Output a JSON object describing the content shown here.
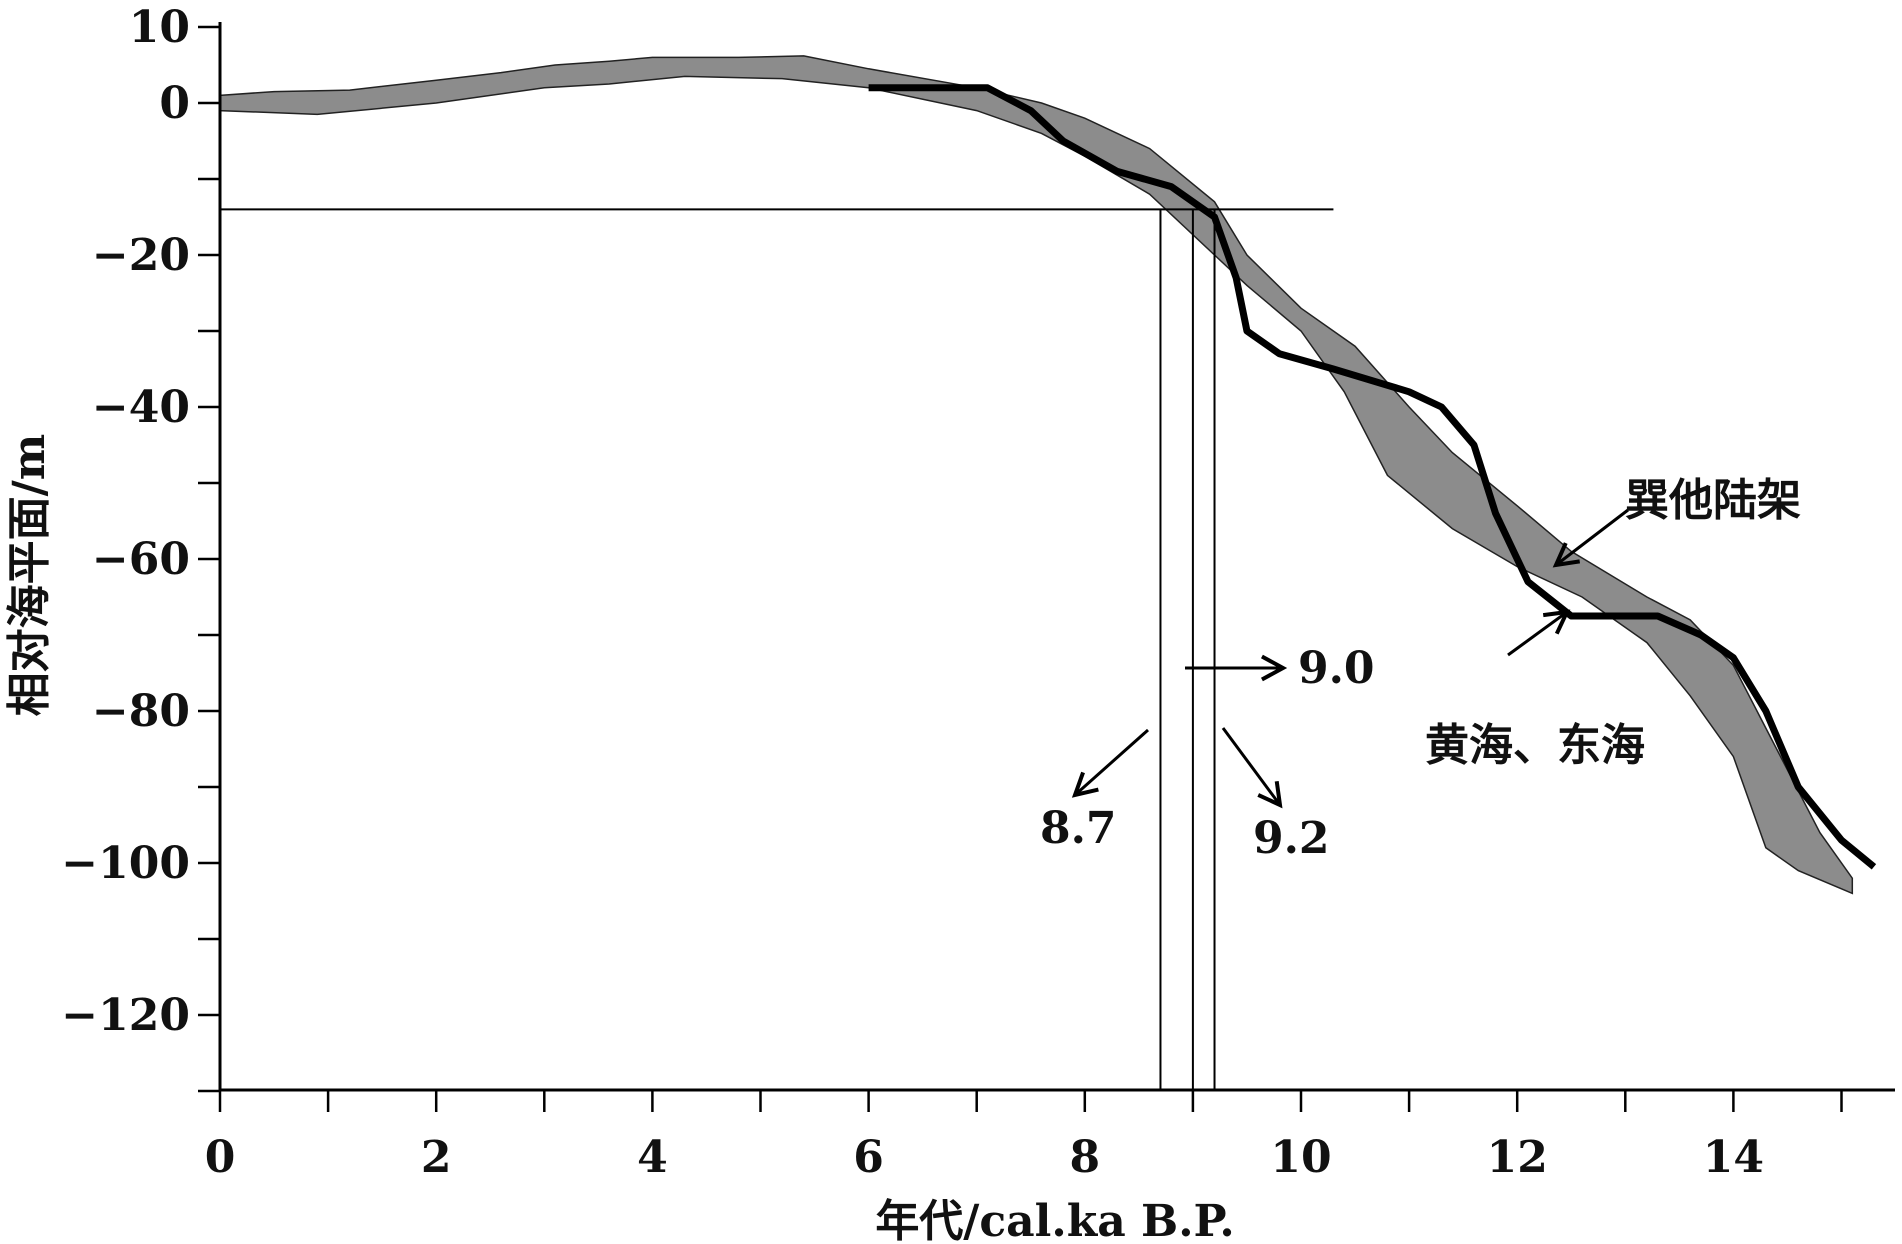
{
  "chart_data": {
    "type": "line",
    "xlabel": "年代/cal.ka B.P.",
    "ylabel": "相对海平面/m",
    "xlim": [
      0,
      15.5
    ],
    "ylim": [
      -130,
      10
    ],
    "x_ticks": [
      0,
      2,
      4,
      6,
      8,
      10,
      12,
      14
    ],
    "y_ticks": [
      10,
      0,
      -20,
      -40,
      -60,
      -80,
      -100,
      -120
    ],
    "x_tick_labels": [
      "0",
      "2",
      "4",
      "6",
      "8",
      "10",
      "12",
      "14"
    ],
    "y_tick_labels": [
      "10",
      "0",
      "−20",
      "−40",
      "−60",
      "−80",
      "−100",
      "−120"
    ],
    "band_color": "#8c8c8c",
    "series": [
      {
        "name": "巽他陆架",
        "kind": "band",
        "upper": [
          [
            0,
            1
          ],
          [
            0.5,
            1.5
          ],
          [
            1.2,
            1.7
          ],
          [
            2,
            3
          ],
          [
            2.6,
            4
          ],
          [
            3.1,
            5
          ],
          [
            3.6,
            5.5
          ],
          [
            4,
            6
          ],
          [
            4.8,
            6
          ],
          [
            5.4,
            6.2
          ],
          [
            6,
            4.5
          ],
          [
            7,
            2
          ],
          [
            7.6,
            0
          ],
          [
            8,
            -2
          ],
          [
            8.6,
            -6
          ],
          [
            9.2,
            -13
          ],
          [
            9.5,
            -20
          ],
          [
            10,
            -27
          ],
          [
            10.5,
            -32
          ],
          [
            11,
            -40
          ],
          [
            11.4,
            -46
          ],
          [
            12,
            -53
          ],
          [
            12.5,
            -59
          ],
          [
            13.2,
            -65
          ],
          [
            13.6,
            -68
          ],
          [
            14,
            -74
          ],
          [
            14.4,
            -85
          ],
          [
            14.8,
            -96
          ],
          [
            15.1,
            -102
          ]
        ],
        "lower": [
          [
            0,
            -1
          ],
          [
            0.9,
            -1.5
          ],
          [
            2,
            0
          ],
          [
            3,
            2
          ],
          [
            3.6,
            2.5
          ],
          [
            4.3,
            3.5
          ],
          [
            5.2,
            3.2
          ],
          [
            6,
            2
          ],
          [
            7,
            -1
          ],
          [
            7.6,
            -4
          ],
          [
            8,
            -7
          ],
          [
            8.6,
            -12
          ],
          [
            9.2,
            -20
          ],
          [
            9.5,
            -24
          ],
          [
            10,
            -30
          ],
          [
            10.4,
            -38
          ],
          [
            10.8,
            -49
          ],
          [
            11.4,
            -56
          ],
          [
            12,
            -61
          ],
          [
            12.6,
            -65
          ],
          [
            13.2,
            -71
          ],
          [
            13.6,
            -78
          ],
          [
            14,
            -86
          ],
          [
            14.3,
            -98
          ],
          [
            14.6,
            -101
          ],
          [
            15.1,
            -104
          ]
        ]
      },
      {
        "name": "黄海、东海",
        "kind": "line",
        "color": "#000000",
        "points": [
          [
            6,
            2
          ],
          [
            7.1,
            2
          ],
          [
            7.5,
            -1
          ],
          [
            7.8,
            -5
          ],
          [
            8.3,
            -9
          ],
          [
            8.8,
            -11
          ],
          [
            9.05,
            -13.5
          ],
          [
            9.2,
            -15
          ],
          [
            9.4,
            -23
          ],
          [
            9.5,
            -30
          ],
          [
            9.8,
            -33
          ],
          [
            10.3,
            -35
          ],
          [
            11,
            -38
          ],
          [
            11.3,
            -40
          ],
          [
            11.6,
            -45
          ],
          [
            11.8,
            -54
          ],
          [
            12.1,
            -63
          ],
          [
            12.5,
            -67.5
          ],
          [
            13.3,
            -67.5
          ],
          [
            13.7,
            -70
          ],
          [
            14,
            -73
          ],
          [
            14.3,
            -80
          ],
          [
            14.6,
            -90
          ],
          [
            15,
            -97
          ],
          [
            15.3,
            -100.5
          ]
        ]
      }
    ],
    "reference_lines": {
      "horizontal_y": -14,
      "vertical_x": [
        8.7,
        9.0,
        9.2
      ]
    },
    "annotations": [
      {
        "text": "9.0"
      },
      {
        "text": "8.7"
      },
      {
        "text": "9.2"
      },
      {
        "text": "巽他陆架"
      },
      {
        "text": "黄海、东海"
      }
    ]
  }
}
